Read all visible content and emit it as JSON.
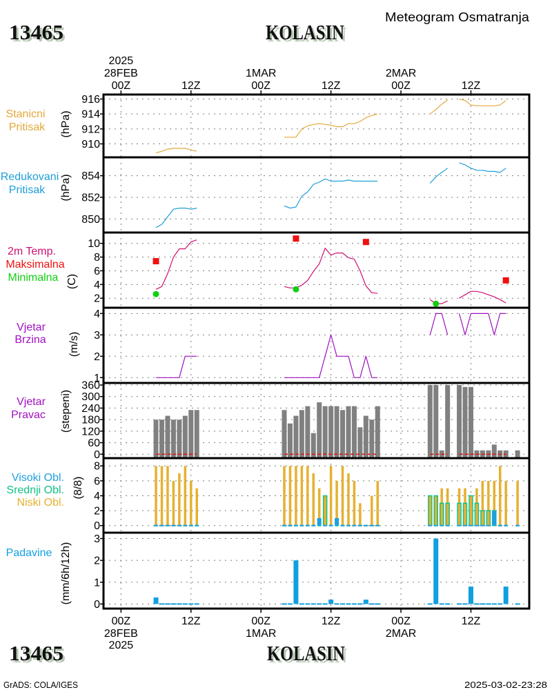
{
  "header": {
    "station_id": "13465",
    "station_name": "KOLASIN",
    "product_title": "Meteogram Osmatranja"
  },
  "footer": {
    "station_id": "13465",
    "station_name": "KOLASIN",
    "credit": "GrADS: COLA/IGES",
    "timestamp": "2025-03-02-23:28"
  },
  "time_axis": {
    "unit": "hours since 28FEB2025 00Z",
    "range": [
      -3,
      70
    ],
    "ticks": [
      {
        "hour": 0,
        "label": "00Z",
        "date": "28FEB",
        "year": "2025"
      },
      {
        "hour": 12,
        "label": "12Z"
      },
      {
        "hour": 24,
        "label": "00Z",
        "date": "1MAR"
      },
      {
        "hour": 36,
        "label": "12Z"
      },
      {
        "hour": 48,
        "label": "00Z",
        "date": "2MAR"
      },
      {
        "hour": 60,
        "label": "12Z"
      }
    ]
  },
  "chart_data": [
    {
      "id": "station-pressure",
      "type": "line",
      "labels": [
        {
          "text": "Stanicni",
          "color": "#e3a83a"
        },
        {
          "text": "Pritisak",
          "color": "#e3a83a"
        }
      ],
      "ylabel": "(hPa)",
      "ylim": [
        908.2,
        916.6
      ],
      "yticks": [
        910,
        912,
        914,
        916
      ],
      "grid": true,
      "x": [
        6,
        7,
        8,
        9,
        10,
        11,
        12,
        13,
        28,
        29,
        30,
        31,
        32,
        33,
        34,
        35,
        36,
        37,
        38,
        39,
        40,
        41,
        42,
        43,
        44,
        53,
        54,
        55,
        56,
        57,
        58,
        59,
        60,
        61,
        62,
        63,
        64,
        65,
        66,
        67,
        68
      ],
      "series": [
        {
          "id": "station-pressure",
          "name": "Stanicni Pritisak",
          "kind": "line",
          "color": "#e3a83a",
          "values": [
            908.8,
            909.0,
            909.3,
            909.4,
            909.4,
            909.4,
            909.2,
            909.0,
            910.9,
            910.9,
            910.9,
            912.0,
            912.4,
            912.6,
            912.7,
            912.6,
            912.5,
            912.3,
            912.3,
            912.7,
            912.7,
            913.0,
            913.5,
            913.8,
            914.0,
            914.0,
            914.6,
            915.3,
            915.9,
            null,
            916.0,
            915.8,
            915.2,
            915.1,
            915.1,
            915.1,
            915.1,
            915.2,
            915.8,
            null,
            null
          ]
        }
      ]
    },
    {
      "id": "reduced-pressure",
      "type": "line",
      "labels": [
        {
          "text": "Redukovani",
          "color": "#1e9fd8"
        },
        {
          "text": "Pritisak",
          "color": "#1e9fd8"
        }
      ],
      "ylabel": "(hPa)",
      "ylim": [
        848.74,
        855.7
      ],
      "yticks": [
        850,
        852,
        854
      ],
      "grid": true,
      "x": [
        6,
        7,
        8,
        9,
        10,
        11,
        12,
        13,
        28,
        29,
        30,
        31,
        32,
        33,
        34,
        35,
        36,
        37,
        38,
        39,
        40,
        41,
        42,
        43,
        44,
        53,
        54,
        55,
        56,
        57,
        58,
        59,
        60,
        61,
        62,
        63,
        64,
        65,
        66,
        67,
        68
      ],
      "series": [
        {
          "id": "reduced-pressure",
          "name": "Redukovani Pritisak",
          "kind": "line",
          "color": "#1e9fd8",
          "values": [
            849.2,
            849.5,
            850.2,
            850.9,
            851.0,
            851.0,
            850.9,
            851.0,
            851.2,
            851.0,
            851.1,
            852.1,
            852.5,
            853.2,
            853.4,
            853.7,
            853.5,
            853.5,
            853.5,
            853.6,
            853.5,
            853.5,
            853.5,
            853.5,
            853.5,
            853.3,
            853.9,
            854.3,
            854.7,
            null,
            855.2,
            855.0,
            854.7,
            854.5,
            854.5,
            854.4,
            854.4,
            854.3,
            854.7,
            null,
            null
          ]
        }
      ]
    },
    {
      "id": "temperature",
      "type": "line",
      "labels": [
        {
          "text": "2m Temp.",
          "color": "#cc1070"
        },
        {
          "text": "Maksimalna",
          "color": "#f01010"
        },
        {
          "text": "Minimalna",
          "color": "#10d010"
        }
      ],
      "ylabel": "(C)",
      "ylim": [
        0.61,
        11.58
      ],
      "yticks": [
        2,
        4,
        6,
        8,
        10
      ],
      "grid": true,
      "x": [
        6,
        7,
        8,
        9,
        10,
        11,
        12,
        13,
        28,
        29,
        30,
        31,
        32,
        33,
        34,
        35,
        36,
        37,
        38,
        39,
        40,
        41,
        42,
        43,
        44,
        53,
        54,
        55,
        56,
        57,
        58,
        59,
        60,
        61,
        62,
        63,
        64,
        65,
        66,
        67,
        68
      ],
      "series": [
        {
          "id": "temp-2m",
          "name": "2m Temp.",
          "kind": "line",
          "color": "#cc1070",
          "values": [
            3.3,
            3.7,
            5.6,
            8.0,
            9.2,
            9.2,
            10.2,
            10.5,
            3.7,
            3.5,
            3.5,
            3.9,
            4.6,
            5.9,
            7.0,
            9.3,
            8.3,
            8.6,
            8.6,
            7.9,
            7.7,
            6.0,
            3.8,
            2.8,
            2.7,
            1.8,
            1.2,
            1.2,
            1.6,
            null,
            2.0,
            2.5,
            3.0,
            3.0,
            2.8,
            2.5,
            2.2,
            1.8,
            1.3,
            null,
            null
          ]
        },
        {
          "id": "temp-max",
          "name": "Maksimalna",
          "kind": "square",
          "color": "#f01010",
          "x": [
            6,
            30,
            42,
            66
          ],
          "values": [
            7.4,
            10.7,
            10.2,
            4.6
          ]
        },
        {
          "id": "temp-min",
          "name": "Minimalna",
          "kind": "circle",
          "color": "#10d010",
          "x": [
            6,
            30,
            54
          ],
          "values": [
            2.6,
            3.3,
            1.2
          ]
        }
      ]
    },
    {
      "id": "wind-speed",
      "type": "line",
      "labels": [
        {
          "text": "Vjetar",
          "color": "#a010c0"
        },
        {
          "text": "Brzina",
          "color": "#a010c0"
        }
      ],
      "ylabel": "(m/s)",
      "ylim": [
        0.75,
        4.27
      ],
      "yticks": [
        1,
        2,
        3,
        4
      ],
      "grid": true,
      "x": [
        6,
        7,
        8,
        9,
        10,
        11,
        12,
        13,
        28,
        29,
        30,
        31,
        32,
        33,
        34,
        35,
        36,
        37,
        38,
        39,
        40,
        41,
        42,
        43,
        44,
        53,
        54,
        55,
        56,
        57,
        58,
        59,
        60,
        61,
        62,
        63,
        64,
        65,
        66,
        67,
        68
      ],
      "series": [
        {
          "id": "wind-speed",
          "name": "Vjetar Brzina",
          "kind": "line",
          "color": "#a010c0",
          "values": [
            1,
            1,
            1,
            1,
            1,
            2,
            2,
            2,
            1,
            1,
            1,
            1,
            1,
            1,
            1,
            2,
            3,
            2,
            2,
            2,
            1,
            1,
            2,
            1,
            1,
            3,
            4,
            4,
            3,
            null,
            4,
            3,
            4,
            4,
            4,
            4,
            3,
            4,
            4,
            null,
            null
          ]
        }
      ]
    },
    {
      "id": "wind-direction",
      "type": "bar",
      "labels": [
        {
          "text": "Vjetar",
          "color": "#a010c0"
        },
        {
          "text": "Pravac",
          "color": "#a010c0"
        }
      ],
      "ylabel": "(stepeni)",
      "ylim": [
        -20.5,
        370.8
      ],
      "yticks": [
        0,
        60,
        120,
        180,
        240,
        300,
        360
      ],
      "grid": true,
      "x": [
        6,
        7,
        8,
        9,
        10,
        11,
        12,
        13,
        28,
        29,
        30,
        31,
        32,
        33,
        34,
        35,
        36,
        37,
        38,
        39,
        40,
        41,
        42,
        43,
        44,
        53,
        54,
        55,
        56,
        57,
        58,
        59,
        60,
        61,
        62,
        63,
        64,
        65,
        66,
        67,
        68
      ],
      "series": [
        {
          "id": "wind-direction",
          "name": "Vjetar Pravac",
          "kind": "bar",
          "color": "#808080",
          "values": [
            180,
            180,
            200,
            180,
            180,
            200,
            230,
            230,
            230,
            160,
            200,
            230,
            250,
            110,
            270,
            250,
            250,
            250,
            230,
            250,
            250,
            140,
            200,
            180,
            250,
            360,
            360,
            20,
            360,
            null,
            360,
            350,
            350,
            20,
            20,
            20,
            50,
            20,
            20,
            null,
            20
          ]
        },
        {
          "id": "wind-direction-zero",
          "name": "red dashed line",
          "kind": "dashed-line",
          "color": "#e01818",
          "values": [
            0,
            0,
            0,
            0,
            0,
            0,
            0,
            0,
            0,
            0,
            0,
            0,
            0,
            0,
            0,
            0,
            0,
            0,
            0,
            0,
            0,
            0,
            0,
            0,
            0,
            0,
            0,
            0,
            0,
            null,
            0,
            0,
            0,
            0,
            0,
            0,
            0,
            0,
            0,
            null,
            0
          ]
        }
      ]
    },
    {
      "id": "cloud-cover",
      "type": "bar",
      "labels": [
        {
          "text": "Visoki Obl.",
          "color": "#1ea0e0"
        },
        {
          "text": "Srednji Obl.",
          "color": "#10c088"
        },
        {
          "text": "Niski Obl.",
          "color": "#e6b030"
        }
      ],
      "ylabel": "(8/8)",
      "ylim": [
        -0.95,
        9.04
      ],
      "yticks": [
        0,
        2,
        4,
        6,
        8
      ],
      "grid": true,
      "x": [
        6,
        7,
        8,
        9,
        10,
        11,
        12,
        13,
        28,
        29,
        30,
        31,
        32,
        33,
        34,
        35,
        36,
        37,
        38,
        39,
        40,
        41,
        42,
        43,
        44,
        53,
        54,
        55,
        56,
        57,
        58,
        59,
        60,
        61,
        62,
        63,
        64,
        65,
        66,
        67,
        68
      ],
      "series": [
        {
          "id": "cloud-low",
          "name": "Niski Obl.",
          "kind": "bar0",
          "color": "#e6b030",
          "values": [
            8,
            8,
            8,
            6,
            7,
            8,
            6,
            5,
            8,
            8,
            8,
            8,
            8,
            7,
            5,
            4,
            8,
            6,
            8,
            7,
            6,
            3,
            0,
            4,
            6,
            4,
            4,
            5,
            5,
            null,
            5,
            5,
            4,
            5,
            6,
            6,
            6,
            8,
            6,
            null,
            6
          ]
        },
        {
          "id": "cloud-middle",
          "name": "Srednji Obl.",
          "kind": "outline-bar",
          "color": "#10c088",
          "values": [
            0,
            0,
            0,
            0,
            0,
            0,
            0,
            0,
            0,
            0,
            0,
            0,
            0,
            0,
            0,
            4,
            0,
            0,
            0,
            0,
            0,
            0,
            0,
            0,
            0,
            4,
            4,
            3,
            3,
            null,
            3,
            3,
            4,
            3,
            2,
            2,
            2,
            0,
            0,
            null,
            0
          ]
        },
        {
          "id": "cloud-high",
          "name": "Visoki Obl.",
          "kind": "bar0",
          "color": "#1ea0e0",
          "values": [
            0,
            0,
            0,
            0,
            0,
            0,
            0,
            0,
            0,
            0,
            0,
            0,
            0,
            0,
            1,
            0,
            0,
            1,
            0,
            0,
            0,
            0,
            0,
            0,
            0,
            0,
            0,
            0,
            0,
            null,
            0,
            0,
            0,
            0,
            0,
            0,
            2,
            0,
            0,
            null,
            0
          ]
        }
      ]
    },
    {
      "id": "precipitation",
      "type": "bar",
      "labels": [
        {
          "text": "Padavine",
          "color": "#10a0e0"
        }
      ],
      "ylabel": "(mm/6h/12h)",
      "ylim": [
        -0.21,
        3.27
      ],
      "yticks": [
        0,
        1,
        2,
        3
      ],
      "grid": true,
      "x": [
        6,
        7,
        8,
        9,
        10,
        11,
        12,
        13,
        28,
        29,
        30,
        31,
        32,
        33,
        34,
        35,
        36,
        37,
        38,
        39,
        40,
        41,
        42,
        43,
        44,
        53,
        54,
        55,
        56,
        57,
        58,
        59,
        60,
        61,
        62,
        63,
        64,
        65,
        66,
        67,
        68
      ],
      "series": [
        {
          "id": "precipitation",
          "name": "Padavine",
          "kind": "bar0",
          "color": "#10a0e0",
          "values": [
            0.3,
            0,
            0,
            0,
            0,
            0,
            0,
            0,
            0,
            0,
            2.0,
            0,
            0,
            0,
            0,
            0,
            0.2,
            0,
            0,
            0,
            0,
            0,
            0.2,
            0,
            0,
            0,
            3.0,
            0,
            0,
            null,
            0,
            0,
            0.8,
            0,
            0,
            0,
            0,
            0,
            0.8,
            null,
            0
          ]
        }
      ]
    }
  ]
}
